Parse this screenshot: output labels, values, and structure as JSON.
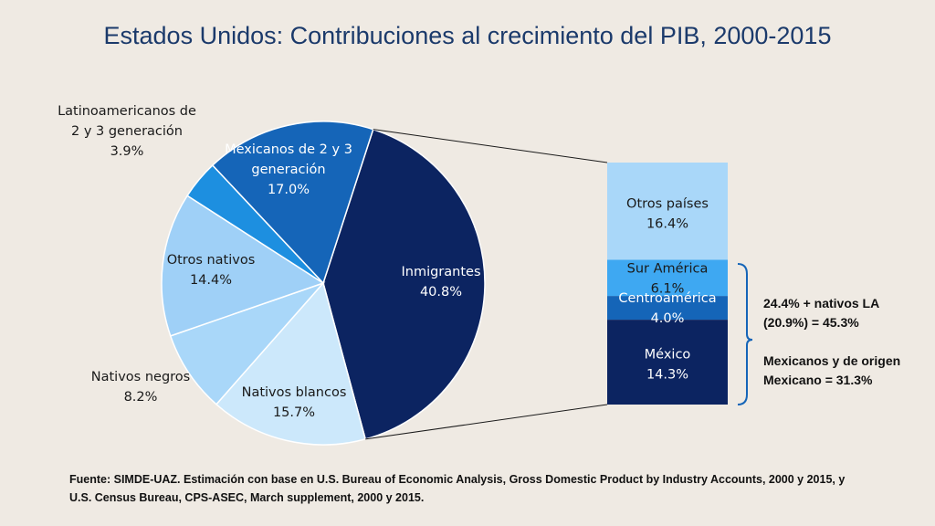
{
  "title": "Estados Unidos: Contribuciones al crecimiento del PIB, 2000-2015",
  "chart_data": [
    {
      "type": "pie",
      "slices": [
        {
          "label": [
            "Inmigrantes",
            "40.8%"
          ],
          "value": 40.8,
          "color": "#0c2461",
          "text_color": "#ffffff"
        },
        {
          "label": [
            "Nativos blancos",
            "15.7%"
          ],
          "value": 15.7,
          "color": "#cce8fb",
          "text_color": "#1a1a1a"
        },
        {
          "label": [
            "Nativos negros",
            "8.2%"
          ],
          "value": 8.2,
          "color": "#a9d7f9",
          "text_color": "#1a1a1a"
        },
        {
          "label": [
            "Otros nativos",
            "14.4%"
          ],
          "value": 14.4,
          "color": "#9fd0f7",
          "text_color": "#1a1a1a"
        },
        {
          "label": [
            "Latinoamericanos de",
            "2 y 3 generación",
            "3.9%"
          ],
          "value": 3.9,
          "color": "#1d8fe0",
          "text_color": "#1a1a1a"
        },
        {
          "label": [
            "Mexicanos de 2 y 3",
            "generación",
            "17.0%"
          ],
          "value": 17.0,
          "color": "#1565b8",
          "text_color": "#ffffff"
        }
      ]
    },
    {
      "type": "bar",
      "stacked": true,
      "segments": [
        {
          "label": [
            "Otros países",
            "16.4%"
          ],
          "value": 16.4,
          "color": "#a9d7f9",
          "text_color": "#1a1a1a"
        },
        {
          "label": [
            "Sur América",
            "6.1%"
          ],
          "value": 6.1,
          "color": "#3ea8f2",
          "text_color": "#1a1a1a"
        },
        {
          "label": [
            "Centroamérica",
            "4.0%"
          ],
          "value": 4.0,
          "color": "#1565b8",
          "text_color": "#ffffff"
        },
        {
          "label": [
            "México",
            "14.3%"
          ],
          "value": 14.3,
          "color": "#0c2461",
          "text_color": "#ffffff"
        }
      ]
    }
  ],
  "annotation": {
    "line1": "24.4% + nativos LA",
    "line2": "(20.9%) = 45.3%",
    "line3": "Mexicanos y de origen",
    "line4": "Mexicano = 31.3%"
  },
  "source": {
    "line1": "Fuente: SIMDE-UAZ. Estimación con base en U.S. Bureau of Economic Analysis, Gross Domestic Product by Industry Accounts, 2000 y 2015, y",
    "line2": "U.S. Census Bureau, CPS-ASEC, March supplement, 2000 y 2015."
  }
}
